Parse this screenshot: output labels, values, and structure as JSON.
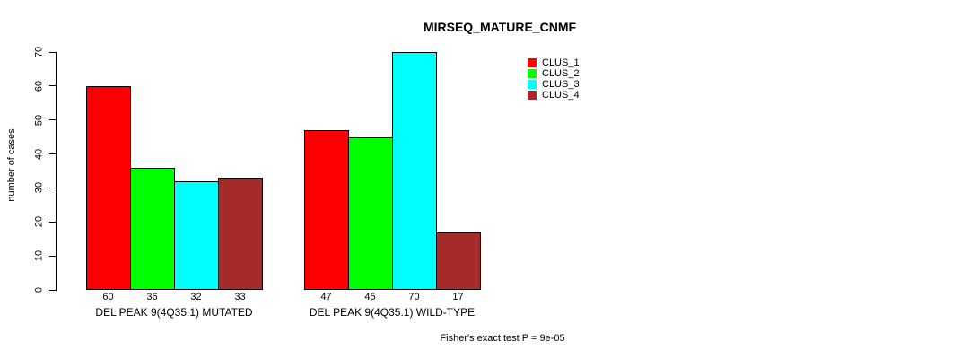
{
  "chart_data": {
    "type": "bar",
    "title": "MIRSEQ_MATURE_CNMF",
    "ylabel": "number of cases",
    "xlabel": "",
    "categories": [
      "DEL PEAK 9(4Q35.1) MUTATED",
      "DEL PEAK 9(4Q35.1) WILD-TYPE"
    ],
    "series": [
      {
        "name": "CLUS_1",
        "color": "#FF0000",
        "values": [
          60,
          47
        ]
      },
      {
        "name": "CLUS_2",
        "color": "#00FF00",
        "values": [
          36,
          45
        ]
      },
      {
        "name": "CLUS_3",
        "color": "#00FFFF",
        "values": [
          32,
          70
        ]
      },
      {
        "name": "CLUS_4",
        "color": "#A52A2A",
        "values": [
          33,
          17
        ]
      }
    ],
    "ylim": [
      0,
      70
    ],
    "yticks": [
      0,
      10,
      20,
      30,
      40,
      50,
      60,
      70
    ],
    "bar_value_labels": true,
    "grid": false,
    "legend_position": "top-right",
    "annotation": "Fisher's exact test P = 9e-05"
  },
  "colors": {
    "axis": "#000000",
    "background": "#FFFFFF"
  }
}
